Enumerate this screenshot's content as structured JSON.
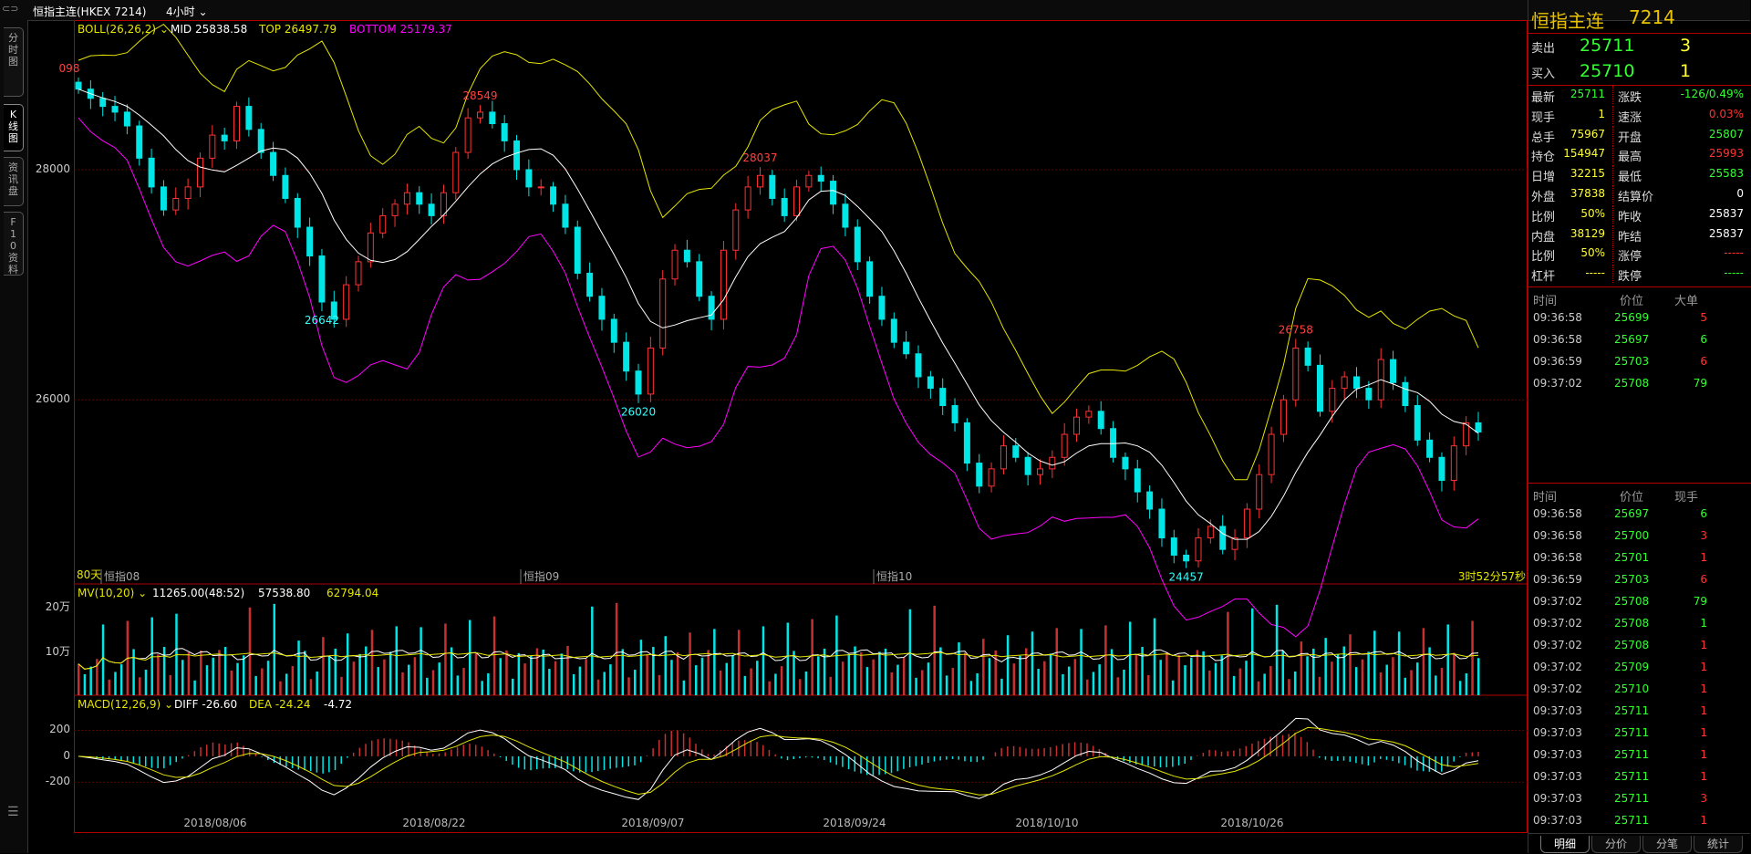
{
  "topbar": {
    "symbol_label": "恒指主连(HKEX 7214)",
    "period_label": "4小时"
  },
  "left_tabs": [
    {
      "label": "分时图"
    },
    {
      "label": "K线图"
    },
    {
      "label": "资讯盘"
    },
    {
      "label": "F10资料"
    }
  ],
  "boll": {
    "label": "BOLL(26,26,2)",
    "mid": "MID 25838.58",
    "top": "TOP 26497.79",
    "bottom": "BOTTOM 25179.37"
  },
  "main_price_labels": [
    "28000",
    "26000"
  ],
  "main_marks": [
    {
      "text": "28549",
      "pos": "high"
    },
    {
      "text": "26642",
      "pos": "low"
    },
    {
      "text": "28037",
      "pos": "high"
    },
    {
      "text": "26020",
      "pos": "low"
    },
    {
      "text": "26758",
      "pos": "high"
    },
    {
      "text": "24457",
      "pos": "low"
    },
    {
      "text": "098",
      "pos": "high"
    }
  ],
  "contract_labels": [
    {
      "text": "恒指08"
    },
    {
      "text": "恒指09"
    },
    {
      "text": "恒指10"
    }
  ],
  "days_label": "80天",
  "countdown_label": "3时52分57秒",
  "mv": {
    "label": "MV(10,20)",
    "val1": "11265.00(48:52)",
    "val2": "57538.80",
    "val3": "62794.04",
    "axis": [
      "20万",
      "10万"
    ]
  },
  "macd": {
    "label": "MACD(12,26,9)",
    "diff": "DIFF -26.60",
    "dea": "DEA -24.24",
    "macd": "-4.72",
    "axis": [
      "200",
      "0",
      "-200"
    ]
  },
  "date_labels": [
    "2018/08/06",
    "2018/08/22",
    "2018/09/07",
    "2018/09/24",
    "2018/10/10",
    "2018/10/26"
  ],
  "colors": {
    "up": "#ff3232",
    "down": "#00e5e5",
    "mid": "#ffffff",
    "top": "#e5e500",
    "bottom": "#ff00ff",
    "ma20": "#e5e500",
    "border": "#b00000"
  },
  "chart_data": {
    "type": "candlestick",
    "title": "恒指主连(HKEX 7214) 4小时",
    "closes": [
      28700,
      28620,
      28550,
      28500,
      28380,
      28100,
      27850,
      27650,
      27750,
      27850,
      28100,
      28300,
      28250,
      28550,
      28350,
      28150,
      27950,
      27750,
      27500,
      27250,
      26850,
      26700,
      27000,
      27200,
      27450,
      27600,
      27700,
      27800,
      27700,
      27600,
      27800,
      28150,
      28450,
      28500,
      28400,
      28250,
      28000,
      27850,
      27850,
      27700,
      27500,
      27100,
      26900,
      26700,
      26500,
      26250,
      26050,
      26450,
      27050,
      27300,
      27200,
      26900,
      26700,
      27300,
      27650,
      27850,
      27950,
      27750,
      27600,
      27850,
      27950,
      27900,
      27700,
      27500,
      27200,
      26900,
      26700,
      26500,
      26400,
      26200,
      26100,
      25950,
      25800,
      25450,
      25250,
      25400,
      25600,
      25500,
      25350,
      25400,
      25500,
      25700,
      25850,
      25900,
      25750,
      25500,
      25400,
      25200,
      25050,
      24800,
      24650,
      24600,
      24800,
      24900,
      24700,
      24800,
      25050,
      25350,
      25700,
      26000,
      26450,
      26300,
      25900,
      26100,
      26200,
      26100,
      26000,
      26350,
      26150,
      25950,
      25650,
      25500,
      25300,
      25600,
      25800,
      25720
    ],
    "mid": {
      "name": "MID",
      "value": 25838.58
    },
    "top": {
      "name": "TOP",
      "value": 26497.79
    },
    "bottom": {
      "name": "BOTTOM",
      "value": 25179.37
    },
    "ylim": [
      24400,
      29300
    ],
    "volume": {
      "ma10": 57538.8,
      "ma20": 62794.04,
      "ylim": [
        0,
        220000
      ]
    },
    "macd": {
      "diff": -26.6,
      "dea": -24.24,
      "macd": -4.72,
      "ylim": [
        -380,
        400
      ]
    }
  },
  "quote": {
    "title": "恒指主连",
    "code": "7214",
    "sell": {
      "label": "卖出",
      "price": "25711",
      "qty": "3"
    },
    "buy": {
      "label": "买入",
      "price": "25710",
      "qty": "1"
    },
    "rows": [
      {
        "l1": "最新",
        "v1": "25711",
        "c1": "#33ff33",
        "l2": "涨跌",
        "v2": "-126/0.49%",
        "c2": "#33ff33"
      },
      {
        "l1": "现手",
        "v1": "1",
        "c1": "#ffff33",
        "l2": "速涨",
        "v2": "0.03%",
        "c2": "#ff3333"
      },
      {
        "l1": "总手",
        "v1": "75967",
        "c1": "#ffff33",
        "l2": "开盘",
        "v2": "25807",
        "c2": "#33ff33"
      },
      {
        "l1": "持仓",
        "v1": "154947",
        "c1": "#ffff33",
        "l2": "最高",
        "v2": "25993",
        "c2": "#ff3333"
      },
      {
        "l1": "日增",
        "v1": "32215",
        "c1": "#ffff33",
        "l2": "最低",
        "v2": "25583",
        "c2": "#33ff33"
      },
      {
        "l1": "外盘",
        "v1": "37838",
        "c1": "#ffff33",
        "l2": "结算价",
        "v2": "0",
        "c2": "#ffffff"
      },
      {
        "l1": "比例",
        "v1": "50%",
        "c1": "#ffff33",
        "l2": "昨收",
        "v2": "25837",
        "c2": "#ffffff"
      },
      {
        "l1": "内盘",
        "v1": "38129",
        "c1": "#ffff33",
        "l2": "昨结",
        "v2": "25837",
        "c2": "#ffffff"
      },
      {
        "l1": "比例",
        "v1": "50%",
        "c1": "#ffff33",
        "l2": "涨停",
        "v2": "-----",
        "c2": "#ff3333"
      },
      {
        "l1": "杠杆",
        "v1": "-----",
        "c1": "#ffff33",
        "l2": "跌停",
        "v2": "-----",
        "c2": "#33ff33"
      }
    ]
  },
  "ticks1": {
    "headers": [
      "时间",
      "价位",
      "大单"
    ],
    "rows": [
      {
        "time": "09:36:58",
        "price": "25699",
        "qty": "5",
        "qc": "#ff3333"
      },
      {
        "time": "09:36:58",
        "price": "25697",
        "qty": "6",
        "qc": "#33ff33"
      },
      {
        "time": "09:36:59",
        "price": "25703",
        "qty": "6",
        "qc": "#ff3333"
      },
      {
        "time": "09:37:02",
        "price": "25708",
        "qty": "79",
        "qc": "#33ff33"
      }
    ]
  },
  "ticks2": {
    "headers": [
      "时间",
      "价位",
      "现手"
    ],
    "rows": [
      {
        "time": "09:36:58",
        "price": "25697",
        "qty": "6",
        "qc": "#33ff33"
      },
      {
        "time": "09:36:58",
        "price": "25700",
        "qty": "3",
        "qc": "#ff3333"
      },
      {
        "time": "09:36:58",
        "price": "25701",
        "qty": "1",
        "qc": "#ff3333"
      },
      {
        "time": "09:36:59",
        "price": "25703",
        "qty": "6",
        "qc": "#ff3333"
      },
      {
        "time": "09:37:02",
        "price": "25708",
        "qty": "79",
        "qc": "#33ff33"
      },
      {
        "time": "09:37:02",
        "price": "25708",
        "qty": "1",
        "qc": "#33ff33"
      },
      {
        "time": "09:37:02",
        "price": "25708",
        "qty": "1",
        "qc": "#ff3333"
      },
      {
        "time": "09:37:02",
        "price": "25709",
        "qty": "1",
        "qc": "#ff3333"
      },
      {
        "time": "09:37:02",
        "price": "25710",
        "qty": "1",
        "qc": "#ff3333"
      },
      {
        "time": "09:37:03",
        "price": "25711",
        "qty": "1",
        "qc": "#ff3333"
      },
      {
        "time": "09:37:03",
        "price": "25711",
        "qty": "1",
        "qc": "#ff3333"
      },
      {
        "time": "09:37:03",
        "price": "25711",
        "qty": "1",
        "qc": "#ff3333"
      },
      {
        "time": "09:37:03",
        "price": "25711",
        "qty": "1",
        "qc": "#ff3333"
      },
      {
        "time": "09:37:03",
        "price": "25711",
        "qty": "3",
        "qc": "#ff3333"
      },
      {
        "time": "09:37:03",
        "price": "25711",
        "qty": "1",
        "qc": "#ff3333"
      }
    ]
  },
  "bottom_tabs": [
    {
      "label": "明细"
    },
    {
      "label": "分价"
    },
    {
      "label": "分笔"
    },
    {
      "label": "统计"
    }
  ]
}
